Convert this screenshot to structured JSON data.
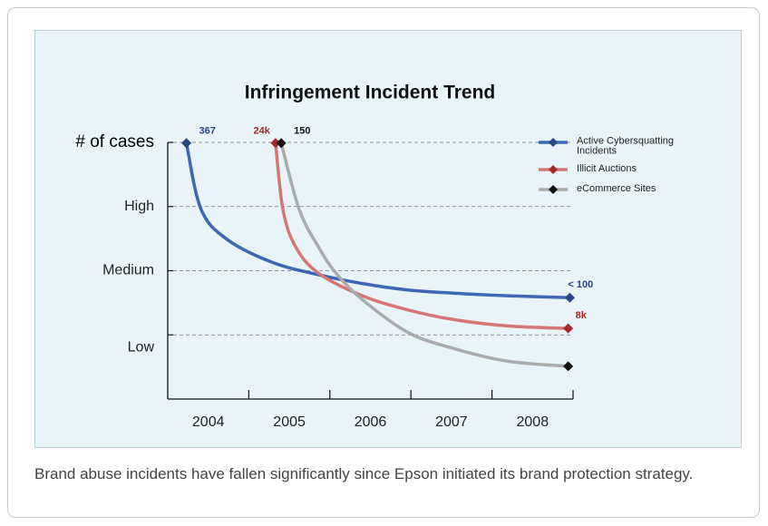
{
  "chart_data": {
    "type": "line",
    "title": "Infringement Incident Trend",
    "xlim": [
      2004,
      2009
    ],
    "xticks": [
      2004,
      2005,
      2006,
      2007,
      2008
    ],
    "ylim": [
      0,
      4
    ],
    "yticks": [
      {
        "value": 4,
        "label": "# of cases"
      },
      {
        "value": 3,
        "label": "High"
      },
      {
        "value": 2,
        "label": "Medium"
      },
      {
        "value": 0.8,
        "label": "Low"
      }
    ],
    "grid_lines": [
      4,
      3,
      2,
      1
    ],
    "grid": true,
    "legend": "top-right",
    "series": [
      {
        "name": "Active Cybersquatting Incidents",
        "color": "#3d66b3",
        "marker_color": "#27467f",
        "label_color": "#27467f",
        "start_label": "367",
        "end_label": "< 100",
        "x": [
          2004.23,
          2004.41,
          2004.73,
          2005.29,
          2005.85,
          2006.4,
          2006.96,
          2007.52,
          2008.19,
          2008.96
        ],
        "values": [
          3.99,
          2.96,
          2.49,
          2.13,
          1.94,
          1.8,
          1.7,
          1.65,
          1.61,
          1.58
        ]
      },
      {
        "name": "Illicit Auctions",
        "color": "#d47676",
        "marker_color": "#a82626",
        "label_color": "#a82626",
        "start_label": "24k",
        "end_label": "8k",
        "x": [
          2005.33,
          2005.42,
          2005.57,
          2005.85,
          2006.4,
          2006.96,
          2007.52,
          2008.19,
          2008.94
        ],
        "values": [
          3.99,
          2.96,
          2.39,
          1.97,
          1.61,
          1.39,
          1.24,
          1.14,
          1.1
        ]
      },
      {
        "name": "eCommerce Sites",
        "color": "#a9abad",
        "marker_color": "#111111",
        "label_color": "#111111",
        "start_label": "150",
        "x": [
          2005.4,
          2005.62,
          2005.85,
          2006.07,
          2006.4,
          2006.96,
          2007.52,
          2008.19,
          2008.94
        ],
        "values": [
          3.99,
          2.96,
          2.39,
          1.97,
          1.55,
          1.04,
          0.79,
          0.59,
          0.51
        ]
      }
    ]
  },
  "caption": "Brand abuse incidents have fallen significantly since Epson initiated its brand protection strategy."
}
